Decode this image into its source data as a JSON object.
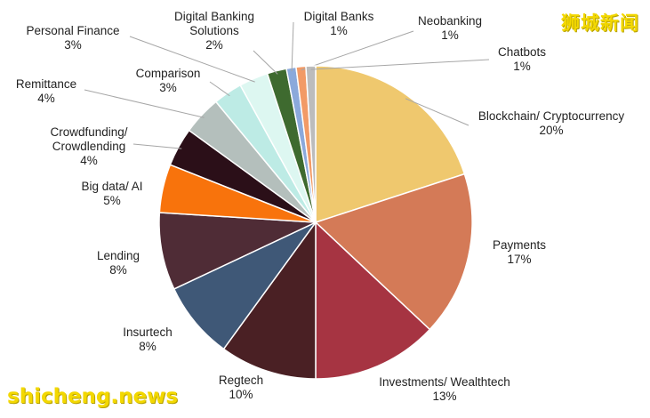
{
  "watermarks": {
    "top_right": "狮城新闻",
    "bottom_left": "shicheng.news"
  },
  "chart_data": {
    "type": "pie",
    "title": "",
    "start_label_order": "clockwise from top",
    "slices": [
      {
        "label": [
          "Blockchain/ Cryptocurrency"
        ],
        "value": 20,
        "value_label": "20%",
        "color": "#EFC86E"
      },
      {
        "label": [
          "Payments"
        ],
        "value": 17,
        "value_label": "17%",
        "color": "#D47A57"
      },
      {
        "label": [
          "Investments/ Wealthtech"
        ],
        "value": 13,
        "value_label": "13%",
        "color": "#A63442"
      },
      {
        "label": [
          "Regtech"
        ],
        "value": 10,
        "value_label": "10%",
        "color": "#4A2024"
      },
      {
        "label": [
          "Insurtech"
        ],
        "value": 8,
        "value_label": "8%",
        "color": "#3F5877"
      },
      {
        "label": [
          "Lending"
        ],
        "value": 8,
        "value_label": "8%",
        "color": "#4F2C36"
      },
      {
        "label": [
          "Big data/ AI"
        ],
        "value": 5,
        "value_label": "5%",
        "color": "#F8730C"
      },
      {
        "label": [
          "Crowdfunding/",
          "Crowdlending"
        ],
        "value": 4,
        "value_label": "4%",
        "color": "#2B0F18"
      },
      {
        "label": [
          "Remittance"
        ],
        "value": 4,
        "value_label": "4%",
        "color": "#B4BFBC"
      },
      {
        "label": [
          "Comparison"
        ],
        "value": 3,
        "value_label": "3%",
        "color": "#BDEBE5"
      },
      {
        "label": [
          "Personal Finance"
        ],
        "value": 3,
        "value_label": "3%",
        "color": "#DDF7F1"
      },
      {
        "label": [
          "Digital Banking",
          "Solutions"
        ],
        "value": 2,
        "value_label": "2%",
        "color": "#3E6A2F"
      },
      {
        "label": [
          "Digital Banks"
        ],
        "value": 1,
        "value_label": "1%",
        "color": "#8BA9DB"
      },
      {
        "label": [
          "Neobanking"
        ],
        "value": 1,
        "value_label": "1%",
        "color": "#F29A66"
      },
      {
        "label": [
          "Chatbots"
        ],
        "value": 1,
        "value_label": "1%",
        "color": "#BCBCBC"
      }
    ],
    "legend": "none"
  }
}
